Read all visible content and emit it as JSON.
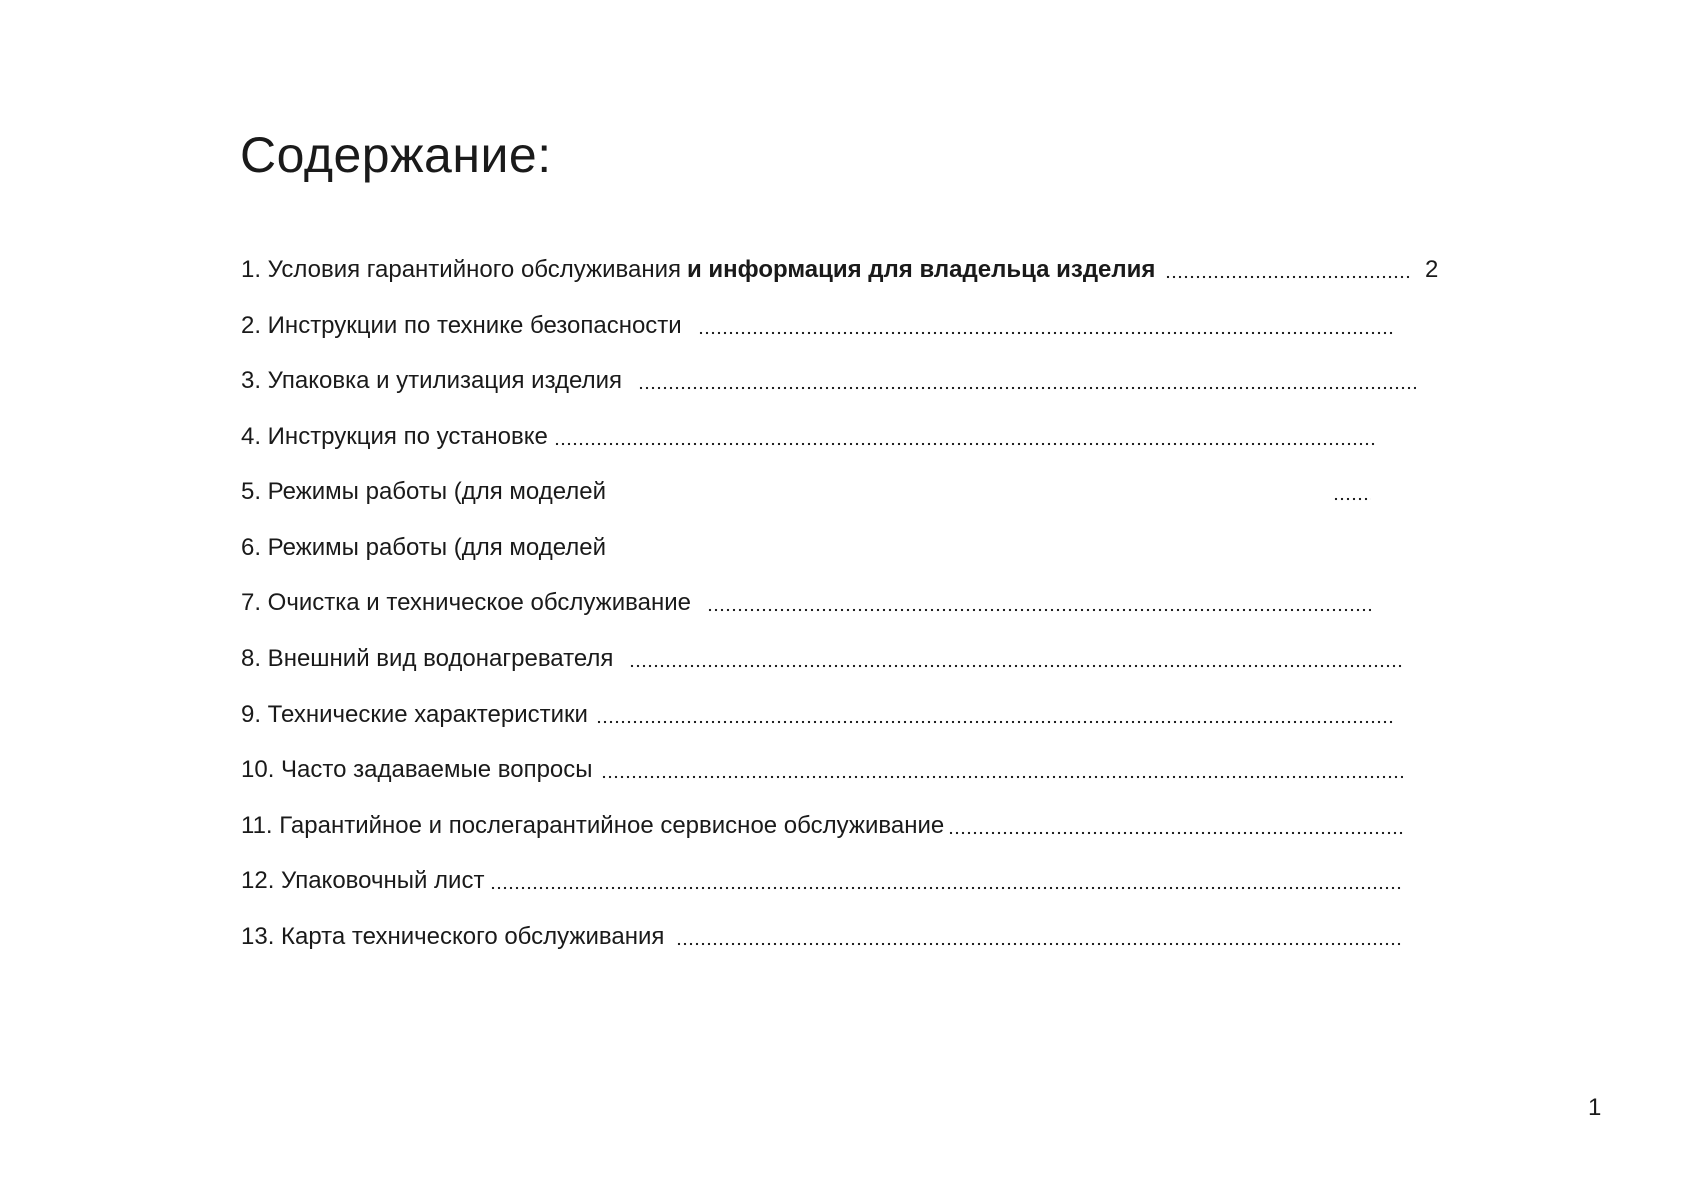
{
  "title": "Содержание:",
  "items": [
    {
      "label": "1. Условия гарантийного обслуживания",
      "label_bold": "и информация для владельца изделия",
      "page": "2"
    },
    {
      "label": "2. Инструкции по технике безопасности"
    },
    {
      "label": "3. Упаковка и утилизация изделия"
    },
    {
      "label": "4. Инструкция по установке"
    },
    {
      "label": "5. Режимы работы (для моделей"
    },
    {
      "label": "6. Режимы работы (для моделей"
    },
    {
      "label": "7. Очистка и техническое обслуживание"
    },
    {
      "label": "8. Внешний вид водонагревателя"
    },
    {
      "label": "9. Технические характеристики"
    },
    {
      "label": "10. Часто задаваемые вопросы"
    },
    {
      "label": "11. Гарантийное и послегарантийное сервисное обслуживание"
    },
    {
      "label": "12. Упаковочный лист"
    },
    {
      "label": "13. Карта технического обслуживания"
    }
  ],
  "page_number": "1"
}
